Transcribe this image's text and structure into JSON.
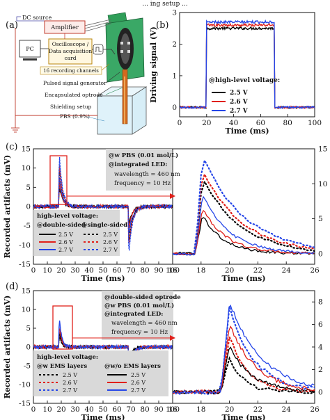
{
  "caption_fragment": "... ing setup ...",
  "panel_labels": [
    "(a)",
    "(b)",
    "(c)",
    "(d)"
  ],
  "diagram": {
    "labels": {
      "dc_source": "DC source",
      "amplifier": "Amplifier",
      "pc": "PC",
      "osc_line1": "Oscilloscope /",
      "osc_line2": "Data acquisition",
      "osc_line3": "card",
      "channels": "16 recording channels",
      "pulsed": "Pulsed signal generator",
      "optrode": "Encapsulated optrode",
      "shielding": "Shielding setup",
      "pbs": "PBS (0.9%)"
    },
    "colors": {
      "dc_source": "#4a4aa8",
      "channels": "#b8860b",
      "optrode": "#2e8b57",
      "shielding": "#c0392b",
      "pbs": "#2980b9"
    }
  },
  "chart_data": [
    {
      "id": "b",
      "type": "line",
      "ylabel": "Driving signal (V)",
      "xlabel": "Time (ms)",
      "xlim": [
        0,
        100
      ],
      "ylim": [
        -0.3,
        3
      ],
      "xticks": [
        "0",
        "20",
        "40",
        "60",
        "80",
        "100"
      ],
      "yticks": [
        "0",
        "1",
        "2",
        "3"
      ],
      "pulse": {
        "start": 20,
        "end": 70
      },
      "legend_title": "@high-level voltage:",
      "series": [
        {
          "name": "2.5 V",
          "color": "#000000",
          "high": 2.5
        },
        {
          "name": "2.6 V",
          "color": "#e0201a",
          "high": 2.6
        },
        {
          "name": "2.7 V",
          "color": "#2546e8",
          "high": 2.7
        }
      ]
    },
    {
      "id": "c-full",
      "type": "line",
      "ylabel": "Recorded artifacts (mV)",
      "xlabel": "Time (ms)",
      "xlim": [
        0,
        100
      ],
      "ylim": [
        -15,
        15
      ],
      "xticks": [
        "0",
        "10",
        "20",
        "30",
        "40",
        "50",
        "60",
        "70",
        "80",
        "90",
        "100"
      ],
      "yticks": [
        "-15",
        "-10",
        "-5",
        "0",
        "5",
        "10",
        "15"
      ],
      "annotation": {
        "line1": "@w PBS (0.01 mol/L)",
        "line2": "@integrated LED:",
        "line3": "wavelength = 460 nm",
        "line4": "frequency = 10 Hz"
      },
      "legend": {
        "title": "high-level voltage:",
        "col1": "@double-sided",
        "col2": "@single-sided",
        "entries": [
          "2.5 V",
          "2.6 V",
          "2.7 V"
        ]
      },
      "series": [
        {
          "name": "2.5 V @double-sided",
          "color": "#000000",
          "dashed": false,
          "peak": 5.5
        },
        {
          "name": "2.6 V @double-sided",
          "color": "#e0201a",
          "dashed": false,
          "peak": 6.5
        },
        {
          "name": "2.7 V @double-sided",
          "color": "#2546e8",
          "dashed": false,
          "peak": 8.5
        },
        {
          "name": "2.5 V @single-sided",
          "color": "#000000",
          "dashed": true,
          "peak": 11
        },
        {
          "name": "2.6 V @single-sided",
          "color": "#e0201a",
          "dashed": true,
          "peak": 12
        },
        {
          "name": "2.7 V @single-sided",
          "color": "#2546e8",
          "dashed": true,
          "peak": 14
        }
      ]
    },
    {
      "id": "c-zoom",
      "type": "line",
      "xlabel": "Time (ms)",
      "xlim": [
        16,
        26
      ],
      "ylim": [
        -1.5,
        15
      ],
      "xticks": [
        "16",
        "18",
        "20",
        "22",
        "24",
        "26"
      ],
      "yticks": [
        "0",
        "5",
        "10",
        "15"
      ],
      "series": [
        {
          "name": "2.5 V @double-sided",
          "color": "#000000",
          "dashed": false,
          "peak": 5.5,
          "tau": 1.5
        },
        {
          "name": "2.6 V @double-sided",
          "color": "#e0201a",
          "dashed": false,
          "peak": 6.5,
          "tau": 1.7
        },
        {
          "name": "2.7 V @double-sided",
          "color": "#2546e8",
          "dashed": false,
          "peak": 8.5,
          "tau": 1.9
        },
        {
          "name": "2.5 V @single-sided",
          "color": "#000000",
          "dashed": true,
          "peak": 11,
          "tau": 2.6
        },
        {
          "name": "2.6 V @single-sided",
          "color": "#e0201a",
          "dashed": true,
          "peak": 12,
          "tau": 2.8
        },
        {
          "name": "2.7 V @single-sided",
          "color": "#2546e8",
          "dashed": true,
          "peak": 14,
          "tau": 3.0
        }
      ]
    },
    {
      "id": "d-full",
      "type": "line",
      "ylabel": "Recorded artifacts (mV)",
      "xlabel": "Time (ms)",
      "xlim": [
        0,
        100
      ],
      "ylim": [
        -15,
        15
      ],
      "xticks": [
        "0",
        "10",
        "20",
        "30",
        "40",
        "50",
        "60",
        "70",
        "80",
        "90",
        "100"
      ],
      "yticks": [
        "-15",
        "-10",
        "-5",
        "0",
        "5",
        "10",
        "15"
      ],
      "annotation": {
        "line1": "@double-sided optrode",
        "line2": "@w PBS (0.01 mol/L)",
        "line3": "@integrated LED:",
        "line4": "wavelength = 460 nm",
        "line5": "frequency = 10 Hz"
      },
      "legend": {
        "title": "high-level voltage:",
        "col1": "@w EMS layers",
        "col2": "@w/o EMS layers",
        "entries": [
          "2.5 V",
          "2.6 V",
          "2.7 V"
        ]
      },
      "series": [
        {
          "name": "2.5 V @w EMS layers",
          "color": "#000000",
          "dashed": true,
          "peak": 3.0
        },
        {
          "name": "2.6 V @w EMS layers",
          "color": "#e0201a",
          "dashed": true,
          "peak": 5.0
        },
        {
          "name": "2.7 V @w EMS layers",
          "color": "#2546e8",
          "dashed": true,
          "peak": 7.5
        },
        {
          "name": "2.5 V @w/o EMS layers",
          "color": "#000000",
          "dashed": false,
          "peak": 4.0
        },
        {
          "name": "2.6 V @w/o EMS layers",
          "color": "#e0201a",
          "dashed": false,
          "peak": 6.0
        },
        {
          "name": "2.7 V @w/o EMS layers",
          "color": "#2546e8",
          "dashed": false,
          "peak": 8.0
        }
      ]
    },
    {
      "id": "d-zoom",
      "type": "line",
      "xlabel": "Time (ms)",
      "xlim": [
        16,
        26
      ],
      "ylim": [
        -1,
        9
      ],
      "xticks": [
        "16",
        "18",
        "20",
        "22",
        "24",
        "26"
      ],
      "yticks": [
        "0",
        "2",
        "4",
        "6",
        "8"
      ],
      "series": [
        {
          "name": "2.5 V @w EMS layers",
          "color": "#000000",
          "dashed": true,
          "peak": 3.0,
          "tau": 1.0
        },
        {
          "name": "2.6 V @w EMS layers",
          "color": "#e0201a",
          "dashed": true,
          "peak": 5.0,
          "tau": 1.3
        },
        {
          "name": "2.7 V @w EMS layers",
          "color": "#2546e8",
          "dashed": true,
          "peak": 7.5,
          "tau": 1.8
        },
        {
          "name": "2.5 V @w/o EMS layers",
          "color": "#000000",
          "dashed": false,
          "peak": 4.0,
          "tau": 1.6
        },
        {
          "name": "2.6 V @w/o EMS layers",
          "color": "#e0201a",
          "dashed": false,
          "peak": 6.0,
          "tau": 1.9
        },
        {
          "name": "2.7 V @w/o EMS layers",
          "color": "#2546e8",
          "dashed": false,
          "peak": 8.0,
          "tau": 2.3
        }
      ]
    }
  ]
}
